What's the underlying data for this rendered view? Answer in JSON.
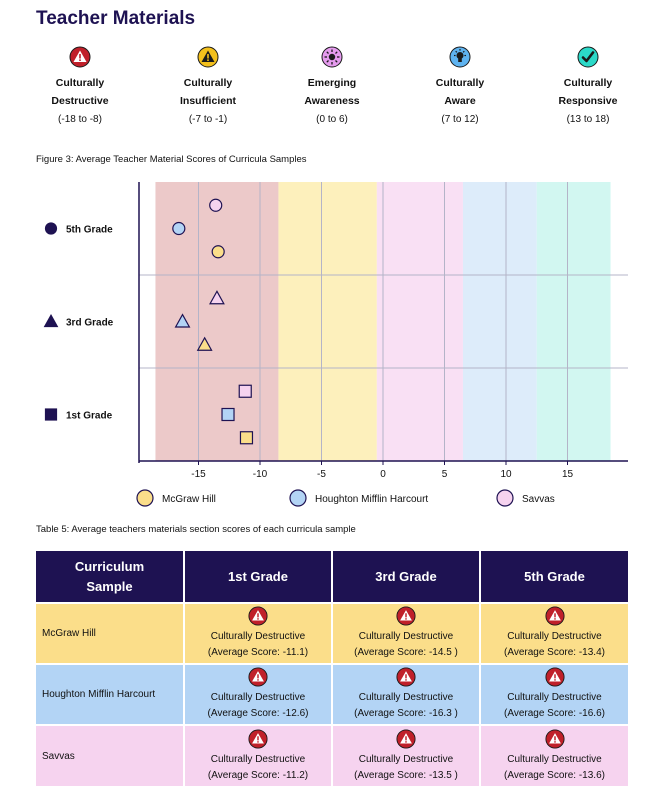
{
  "header": {
    "title": "Teacher Materials"
  },
  "levels": [
    {
      "name_line1": "Culturally",
      "name_line2": "Destructive",
      "range": "(-18 to -8)",
      "color": "#c0202a",
      "icon": "warning-icon"
    },
    {
      "name_line1": "Culturally",
      "name_line2": "Insufficient",
      "range": "(-7 to -1)",
      "color": "#f3c01c",
      "icon": "warning-icon"
    },
    {
      "name_line1": "Emerging",
      "name_line2": "Awareness",
      "range": "(0 to 6)",
      "color": "#e59bee",
      "icon": "sparkle-bulb-icon"
    },
    {
      "name_line1": "Culturally",
      "name_line2": "Aware",
      "range": "(7 to 12)",
      "color": "#5eb3f0",
      "icon": "lightbulb-icon"
    },
    {
      "name_line1": "Culturally",
      "name_line2": "Responsive",
      "range": "(13 to 18)",
      "color": "#2bd9c8",
      "icon": "checkmark-icon"
    }
  ],
  "figure_caption": "Figure 3: Average Teacher Material Scores of Curricula Samples",
  "chart_data": {
    "type": "scatter",
    "orientation": "horizontal",
    "title": "",
    "xlabel": "",
    "ylabel": "",
    "xlim": [
      -19,
      20
    ],
    "xticks": [
      -15,
      -10,
      -5,
      0,
      5,
      10,
      15
    ],
    "grid": true,
    "bands": [
      {
        "from": -18.5,
        "to": -8.5,
        "color": "#ecc9c9"
      },
      {
        "from": -8.5,
        "to": -0.5,
        "color": "#fdf0bc"
      },
      {
        "from": -0.5,
        "to": 6.5,
        "color": "#f9e0f4"
      },
      {
        "from": 6.5,
        "to": 12.5,
        "color": "#ddecfa"
      },
      {
        "from": 12.5,
        "to": 18.5,
        "color": "#d2f7f1"
      }
    ],
    "groups": [
      {
        "label": "5th Grade",
        "marker": "circle"
      },
      {
        "label": "3rd Grade",
        "marker": "triangle"
      },
      {
        "label": "1st Grade",
        "marker": "square"
      }
    ],
    "series": [
      {
        "name": "Savvas",
        "color": "#f6d3ef",
        "values": [
          -13.6,
          -13.5,
          -11.2
        ]
      },
      {
        "name": "Houghton Mifflin Harcourt",
        "color": "#b3d4f5",
        "values": [
          -16.6,
          -16.3,
          -12.6
        ]
      },
      {
        "name": "McGraw Hill",
        "color": "#fbde8a",
        "values": [
          -13.4,
          -14.5,
          -11.1
        ]
      }
    ],
    "legend": [
      {
        "name": "McGraw Hill",
        "color": "#fbde8a"
      },
      {
        "name": "Houghton Mifflin Harcourt",
        "color": "#b3d4f5"
      },
      {
        "name": "Savvas",
        "color": "#f6d3ef"
      }
    ],
    "legend_position": "bottom"
  },
  "table_caption": "Table 5: Average teachers materials section scores of each curricula sample",
  "table": {
    "headers": [
      "Curriculum Sample",
      "1st Grade",
      "3rd Grade",
      "5th Grade"
    ],
    "rows": [
      {
        "sample": "McGraw Hill",
        "cells": [
          {
            "label": "Culturally Destructive",
            "score": "(Average Score: -11.1)"
          },
          {
            "label": "Culturally Destructive",
            "score": "(Average Score: -14.5 )"
          },
          {
            "label": "Culturally Destructive",
            "score": "(Average Score: -13.4)"
          }
        ]
      },
      {
        "sample": "Houghton Mifflin Harcourt",
        "cells": [
          {
            "label": "Culturally Destructive",
            "score": "(Average Score: -12.6)"
          },
          {
            "label": "Culturally Destructive",
            "score": "(Average Score: -16.3 )"
          },
          {
            "label": "Culturally Destructive",
            "score": "(Average Score: -16.6)"
          }
        ]
      },
      {
        "sample": "Savvas",
        "cells": [
          {
            "label": "Culturally Destructive",
            "score": "(Average Score: -11.2)"
          },
          {
            "label": "Culturally Destructive",
            "score": "(Average Score: -13.5 )"
          },
          {
            "label": "Culturally Destructive",
            "score": "(Average Score: -13.6)"
          }
        ]
      }
    ]
  }
}
